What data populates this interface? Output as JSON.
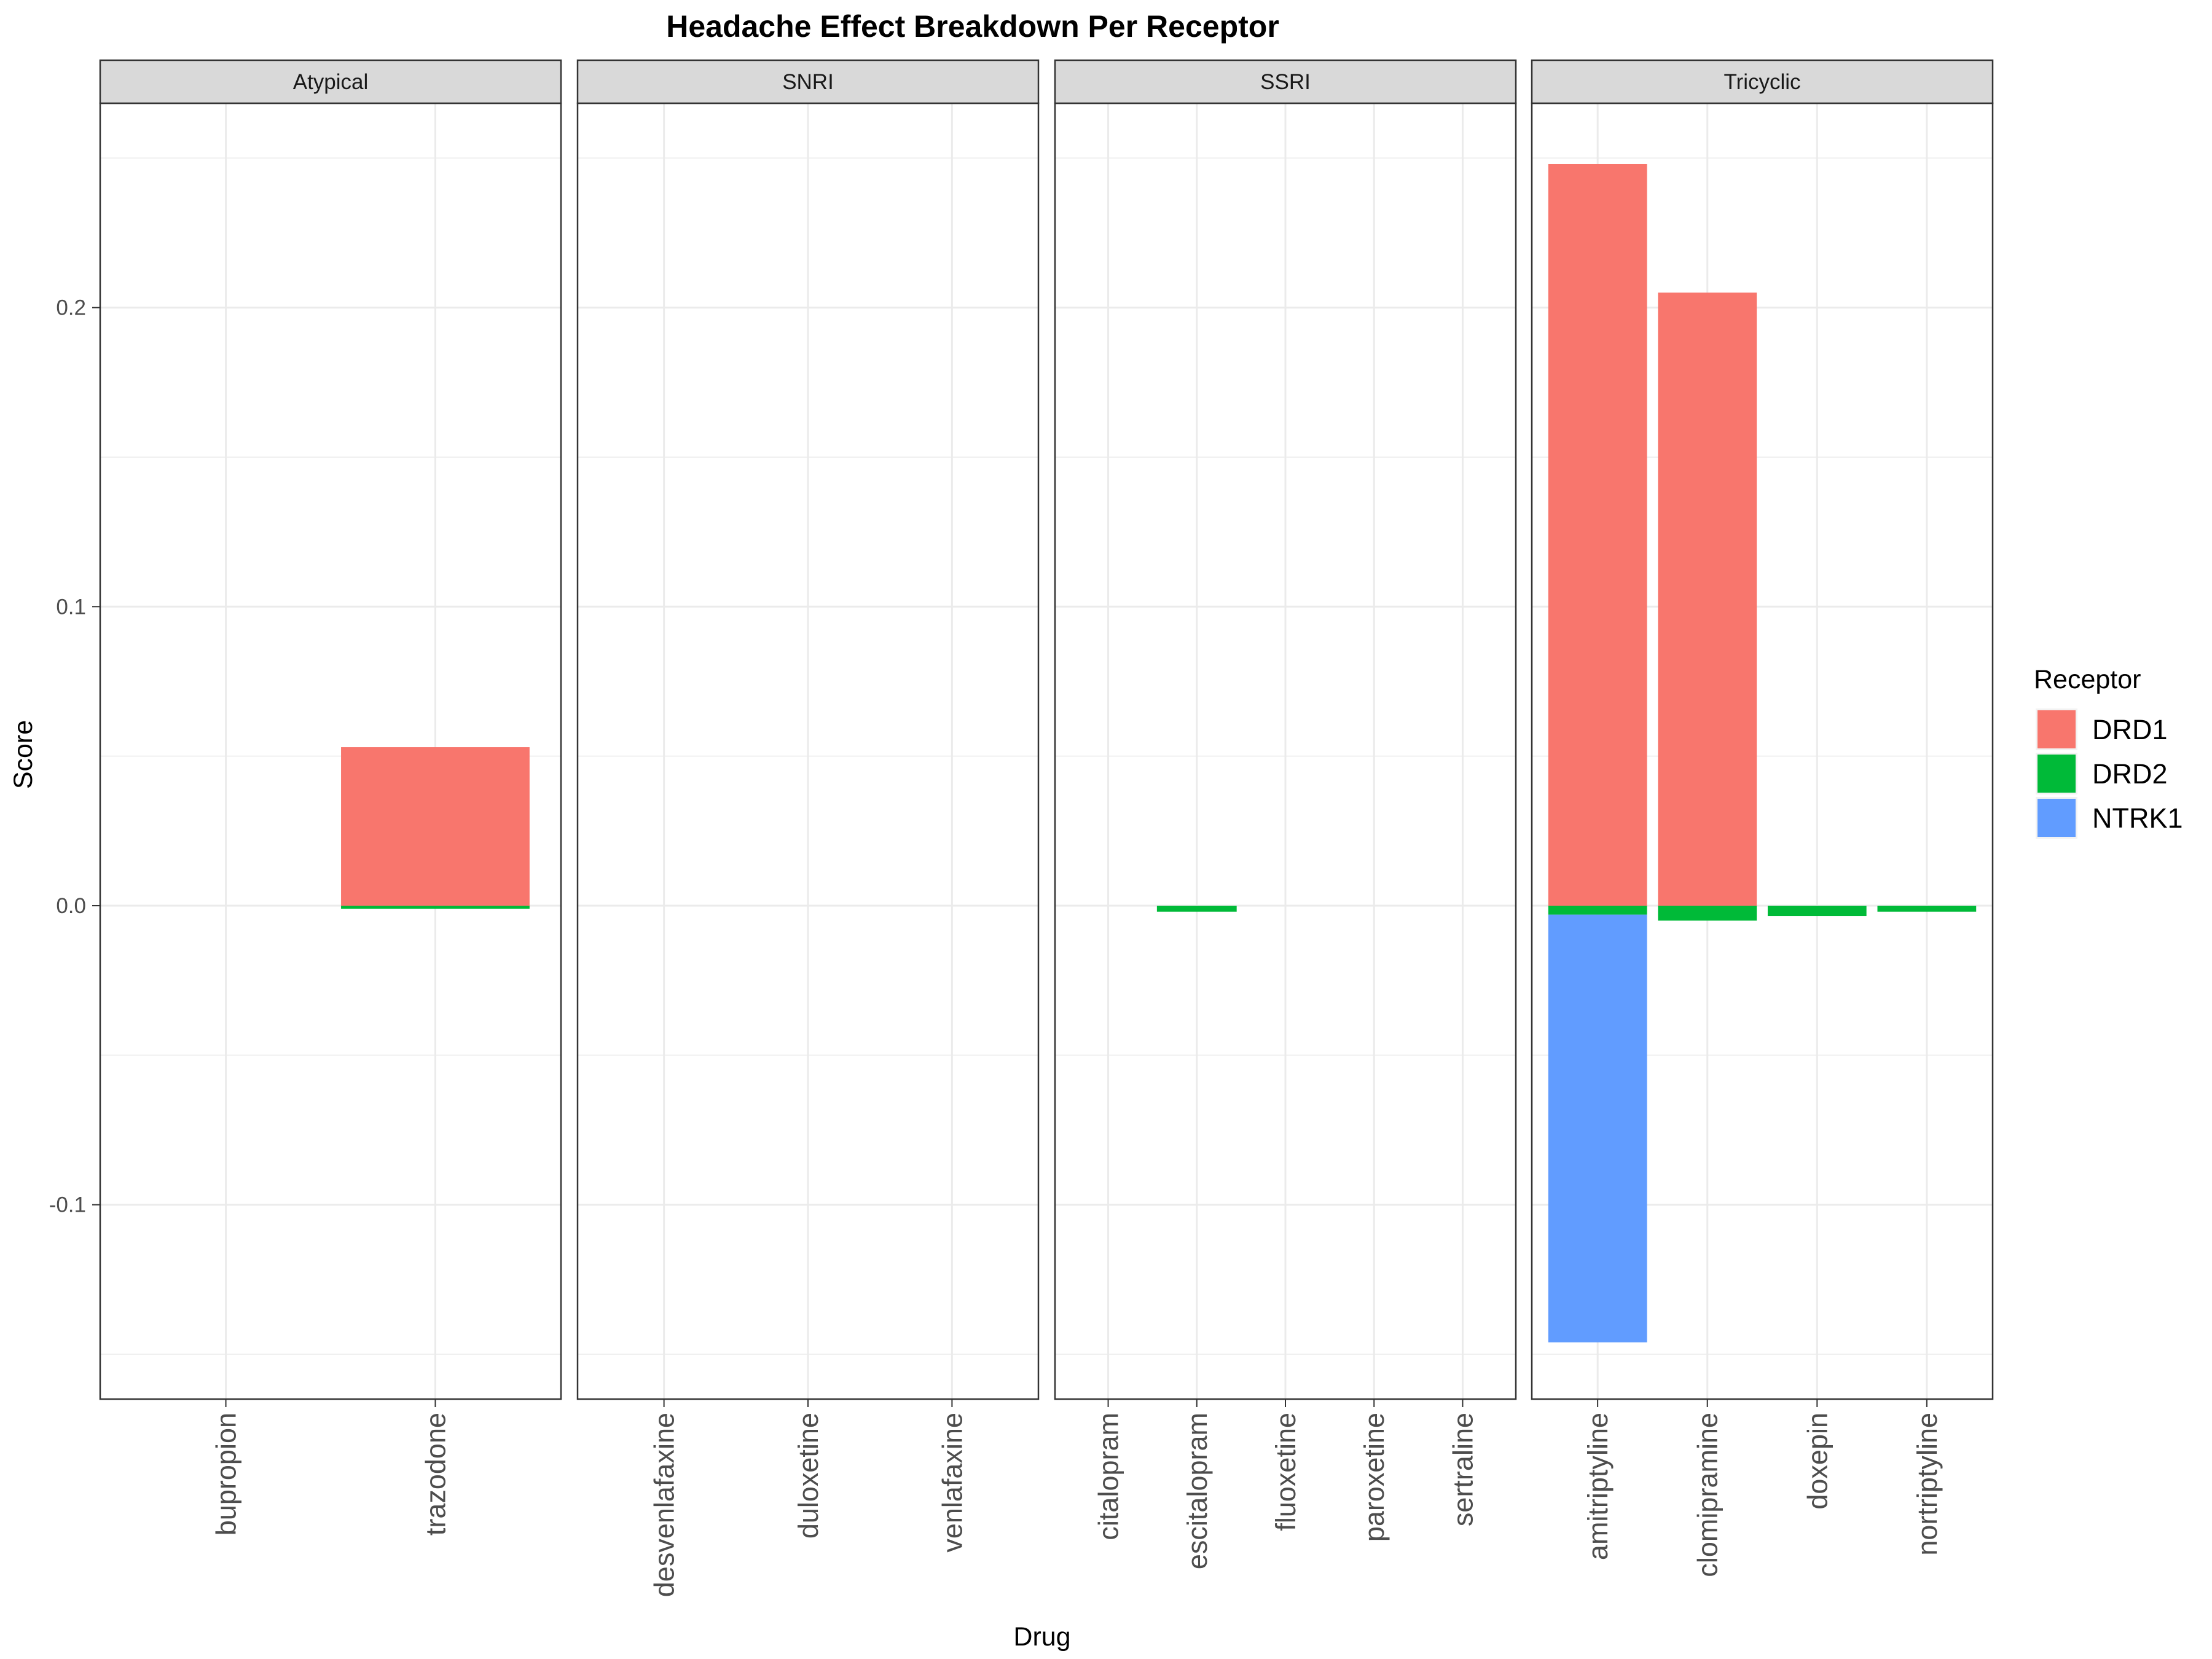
{
  "chart_data": {
    "type": "bar",
    "stacked": true,
    "title": "Headache Effect Breakdown Per Receptor",
    "xlabel": "Drug",
    "ylabel": "Score",
    "ylim": [
      -0.165,
      0.268
    ],
    "y_ticks": [
      -0.1,
      0.0,
      0.1,
      0.2
    ],
    "y_tick_labels": [
      "-0.1",
      "0.0",
      "0.1",
      "0.2"
    ],
    "grid": true,
    "legend": {
      "title": "Receptor",
      "position": "right",
      "entries": [
        {
          "name": "DRD1",
          "color": "#F8766D"
        },
        {
          "name": "DRD2",
          "color": "#00BA38"
        },
        {
          "name": "NTRK1",
          "color": "#619CFF"
        }
      ]
    },
    "panels": [
      {
        "label": "Atypical",
        "categories": [
          "bupropion",
          "trazodone"
        ]
      },
      {
        "label": "SNRI",
        "categories": [
          "desvenlafaxine",
          "duloxetine",
          "venlafaxine"
        ]
      },
      {
        "label": "SSRI",
        "categories": [
          "citalopram",
          "escitalopram",
          "fluoxetine",
          "paroxetine",
          "sertraline"
        ]
      },
      {
        "label": "Tricyclic",
        "categories": [
          "amitriptyline",
          "clomipramine",
          "doxepin",
          "nortriptyline"
        ]
      }
    ],
    "series": [
      {
        "name": "DRD1",
        "values": {
          "trazodone": 0.053,
          "amitriptyline": 0.248,
          "clomipramine": 0.205
        }
      },
      {
        "name": "DRD2",
        "values": {
          "trazodone": -0.001,
          "escitalopram": -0.002,
          "amitriptyline": -0.003,
          "clomipramine": -0.005,
          "doxepin": -0.0035,
          "nortriptyline": -0.002
        }
      },
      {
        "name": "NTRK1",
        "values": {
          "amitriptyline": -0.143
        }
      }
    ]
  }
}
